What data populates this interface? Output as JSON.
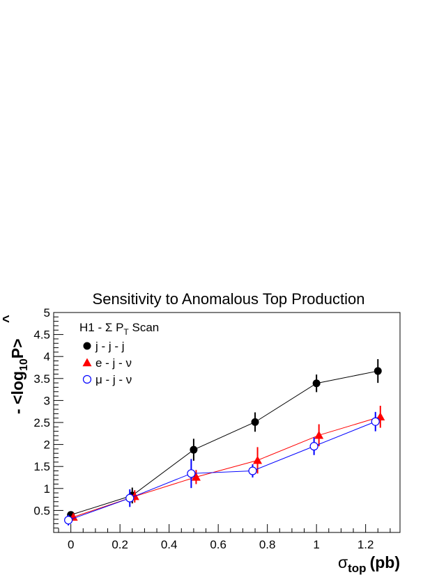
{
  "chart_data": {
    "type": "scatter",
    "title": "Sensitivity to Anomalous Top Production",
    "xlabel": {
      "main": "σ",
      "sub": "top",
      "unit": "(pb)"
    },
    "ylabel": {
      "prefix": "- <log",
      "sub": "10",
      "sym": "P",
      "suffix": ">"
    },
    "legend_header": {
      "pre": "H1 - Σ P",
      "sub": "T",
      "post": " Scan"
    },
    "legend_position": "top-left",
    "xlim": [
      -0.07,
      1.34
    ],
    "ylim": [
      0.0,
      5.0
    ],
    "xticks": [
      0,
      0.2,
      0.4,
      0.6,
      0.8,
      1,
      1.2
    ],
    "xtick_labels": [
      "0",
      "0.2",
      "0.4",
      "0.6",
      "0.8",
      "1",
      "1.2"
    ],
    "yticks": [
      0.5,
      1,
      1.5,
      2,
      2.5,
      3,
      3.5,
      4,
      4.5,
      5
    ],
    "ytick_labels": [
      "0.5",
      "1",
      "1.5",
      "2",
      "2.5",
      "3",
      "3.5",
      "4",
      "4.5",
      "5"
    ],
    "grid": false,
    "series": [
      {
        "name": "j - j - j",
        "color": "#000000",
        "marker": "filled-circle",
        "x": [
          0.0,
          0.25,
          0.5,
          0.75,
          1.0,
          1.25
        ],
        "y": [
          0.4,
          0.84,
          1.88,
          2.51,
          3.39,
          3.67
        ],
        "err": [
          0.08,
          0.18,
          0.25,
          0.22,
          0.2,
          0.27
        ]
      },
      {
        "name": "e - j - ν",
        "color": "#ff0000",
        "marker": "filled-triangle",
        "x": [
          0.01,
          0.26,
          0.51,
          0.76,
          1.01,
          1.26
        ],
        "y": [
          0.35,
          0.82,
          1.26,
          1.64,
          2.21,
          2.63
        ],
        "err": [
          0.07,
          0.14,
          0.16,
          0.3,
          0.25,
          0.25
        ]
      },
      {
        "name": "μ - j - ν",
        "color": "#0000ff",
        "marker": "open-circle",
        "x": [
          -0.01,
          0.24,
          0.49,
          0.74,
          0.99,
          1.24
        ],
        "y": [
          0.28,
          0.78,
          1.34,
          1.4,
          1.96,
          2.52
        ],
        "err": [
          0.12,
          0.2,
          0.33,
          0.15,
          0.2,
          0.22
        ]
      }
    ]
  }
}
